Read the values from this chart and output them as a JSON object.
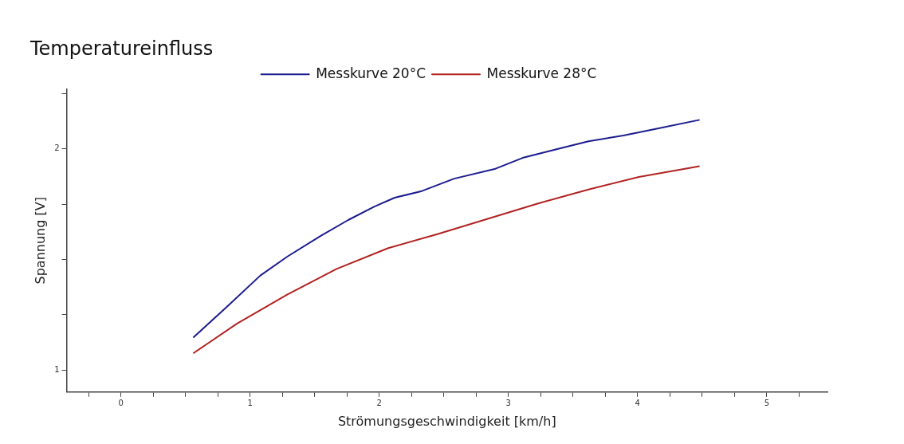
{
  "chart_data": {
    "type": "line",
    "title": "Temperatureinfluss",
    "xlabel": "Strömungsgeschwindigkeit [km/h]",
    "ylabel": "Spannung [V]",
    "xlim": [
      -0.42,
      5.47
    ],
    "xticks": [
      {
        "value": -0.25,
        "label": null
      },
      0,
      {
        "value": 0.25,
        "label": null
      },
      {
        "value": 0.5,
        "label": null
      },
      {
        "value": 0.75,
        "label": null
      },
      1,
      {
        "value": 1.25,
        "label": null
      },
      {
        "value": 1.5,
        "label": null
      },
      {
        "value": 1.75,
        "label": null
      },
      2,
      {
        "value": 2.25,
        "label": null
      },
      {
        "value": 2.5,
        "label": null
      },
      {
        "value": 2.75,
        "label": null
      },
      3,
      {
        "value": 3.25,
        "label": null
      },
      {
        "value": 3.5,
        "label": null
      },
      {
        "value": 3.75,
        "label": null
      },
      4,
      {
        "value": 4.25,
        "label": null
      },
      {
        "value": 4.5,
        "label": null
      },
      {
        "value": 4.75,
        "label": null
      },
      5,
      {
        "value": 5.25,
        "label": null
      }
    ],
    "ylim": [
      0.9,
      2.27
    ],
    "yticks": [
      1,
      {
        "value": 1.25,
        "label": null
      },
      {
        "value": 1.5,
        "label": null
      },
      {
        "value": 1.75,
        "label": null
      },
      2,
      {
        "value": 2.25,
        "label": null
      }
    ],
    "grid": false,
    "legend": "top left",
    "marker": "none",
    "line_style": "solid",
    "series": [
      {
        "name": "Messkurve 20°C",
        "color": "#1c1c8f",
        "x": [
          0.56,
          0.82,
          1.08,
          1.29,
          1.55,
          1.76,
          1.96,
          2.12,
          2.33,
          2.58,
          2.9,
          3.11,
          3.36,
          3.62,
          3.89,
          4.14,
          4.48
        ],
        "values": [
          1.146,
          1.285,
          1.427,
          1.513,
          1.607,
          1.678,
          1.738,
          1.779,
          1.809,
          1.865,
          1.91,
          1.959,
          1.996,
          2.034,
          2.06,
          2.09,
          2.131
        ]
      },
      {
        "name": "Messkurve 28°C",
        "color": "#b22222",
        "x": [
          0.56,
          0.9,
          1.29,
          1.67,
          2.07,
          2.45,
          2.85,
          3.23,
          3.62,
          4.01,
          4.48
        ],
        "values": [
          1.075,
          1.21,
          1.341,
          1.457,
          1.551,
          1.614,
          1.685,
          1.753,
          1.816,
          1.873,
          1.921
        ]
      }
    ]
  }
}
